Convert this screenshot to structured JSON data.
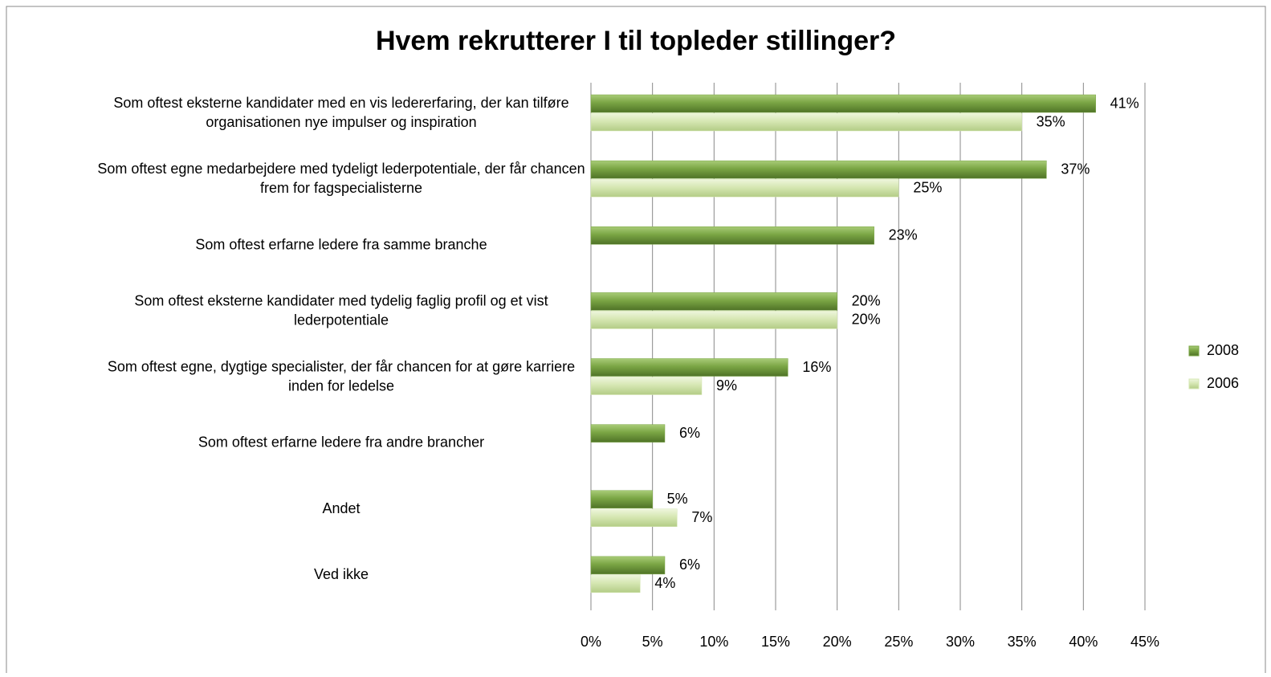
{
  "chart_data": {
    "type": "bar",
    "orientation": "horizontal",
    "title": "Hvem rekrutterer I til topleder stillinger?",
    "categories": [
      "Som oftest eksterne kandidater med en vis ledererfaring, der kan tilføre organisationen nye impulser og inspiration",
      "Som oftest egne medarbejdere med tydeligt lederpotentiale, der får chancen frem for fagspecialisterne",
      "Som oftest erfarne ledere fra samme branche",
      "Som oftest eksterne kandidater med tydelig faglig profil og et vist lederpotentiale",
      "Som oftest egne, dygtige specialister, der får chancen for at gøre karriere inden for ledelse",
      "Som oftest erfarne ledere fra andre brancher",
      "Andet",
      "Ved ikke"
    ],
    "series": [
      {
        "name": "2008",
        "color": "#7aa544",
        "values": [
          41,
          37,
          23,
          20,
          16,
          6,
          5,
          6
        ],
        "value_labels": [
          "41%",
          "37%",
          "23%",
          "20%",
          "16%",
          "6%",
          "5%",
          "6%"
        ]
      },
      {
        "name": "2006",
        "color": "#d6e7b3",
        "values": [
          35,
          25,
          null,
          20,
          9,
          null,
          7,
          4
        ],
        "value_labels": [
          "35%",
          "25%",
          null,
          "20%",
          "9%",
          null,
          "7%",
          "4%"
        ]
      }
    ],
    "xlim": [
      0,
      45
    ],
    "xticks": [
      {
        "value": 0,
        "label": "0%"
      },
      {
        "value": 5,
        "label": "5%"
      },
      {
        "value": 10,
        "label": "10%"
      },
      {
        "value": 15,
        "label": "15%"
      },
      {
        "value": 20,
        "label": "20%"
      },
      {
        "value": 25,
        "label": "25%"
      },
      {
        "value": 30,
        "label": "30%"
      },
      {
        "value": 35,
        "label": "35%"
      },
      {
        "value": 40,
        "label": "40%"
      },
      {
        "value": 45,
        "label": "45%"
      }
    ],
    "grid": true,
    "legend": "right"
  }
}
